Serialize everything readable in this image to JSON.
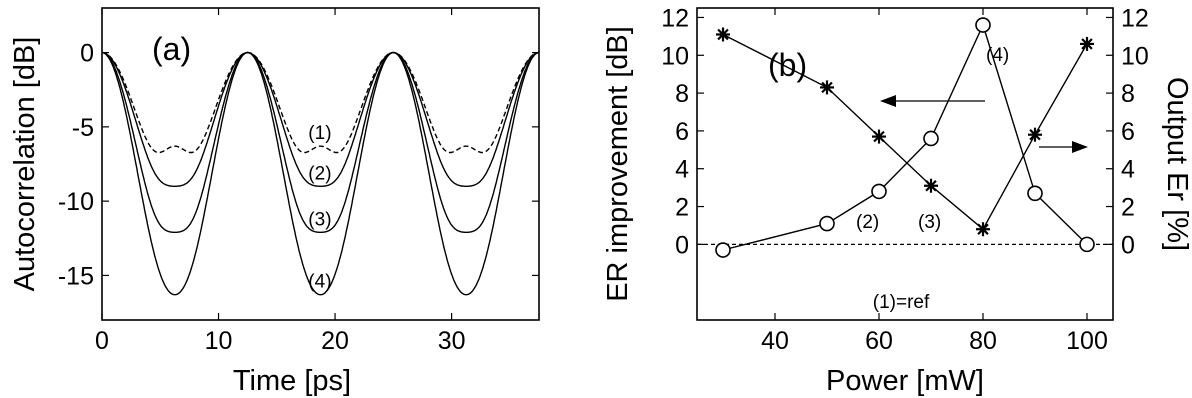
{
  "chart_data": [
    {
      "type": "line",
      "panel_label": "(a)",
      "xlabel": "Time [ps]",
      "ylabel": "Autocorrelation [dB]",
      "xlim": [
        0,
        37.5
      ],
      "ylim": [
        -18,
        3
      ],
      "xticks": [
        0,
        10,
        20,
        30
      ],
      "yticks": [
        0,
        -5,
        -10,
        -15
      ],
      "grid": false,
      "period_ps": 12.5,
      "series": [
        {
          "name": "(1)",
          "style": "dashed",
          "valley_db": -9.2,
          "mid_bump_db": -6.3
        },
        {
          "name": "(2)",
          "style": "solid",
          "valley_db": -10.4,
          "mid_bump_db": -9.0
        },
        {
          "name": "(3)",
          "style": "solid",
          "valley_db": -14.0,
          "mid_bump_db": -12.1
        },
        {
          "name": "(4)",
          "style": "solid",
          "valley_db": -16.8,
          "mid_bump_db": -16.3
        }
      ]
    },
    {
      "type": "line",
      "panel_label": "(b)",
      "xlabel": "Power [mW]",
      "ylabel": "ER improvement [dB]",
      "ylabel_right": "Output Er [%]",
      "xlim": [
        25,
        105
      ],
      "ylim": [
        -4,
        12.5
      ],
      "ylim_right": [
        -4,
        12.5
      ],
      "xticks": [
        40,
        60,
        80,
        100
      ],
      "yticks": [
        0,
        2,
        4,
        6,
        8,
        10,
        12
      ],
      "yticks_right": [
        0,
        2,
        4,
        6,
        8,
        10,
        12
      ],
      "grid": false,
      "x": [
        30,
        50,
        60,
        70,
        80,
        90,
        100
      ],
      "series": [
        {
          "name": "ER improvement",
          "axis": "left",
          "marker": "circle",
          "values": [
            -0.3,
            1.1,
            2.8,
            5.6,
            11.6,
            2.7,
            0.0
          ]
        },
        {
          "name": "Output Er",
          "axis": "right",
          "marker": "star",
          "values": [
            11.1,
            8.3,
            5.7,
            3.1,
            0.8,
            5.8,
            10.6
          ]
        }
      ],
      "reference_line": {
        "y": 0,
        "style": "dashed",
        "label": "(1)=ref"
      },
      "annotations": [
        "(2)",
        "(3)",
        "(4)"
      ]
    }
  ]
}
